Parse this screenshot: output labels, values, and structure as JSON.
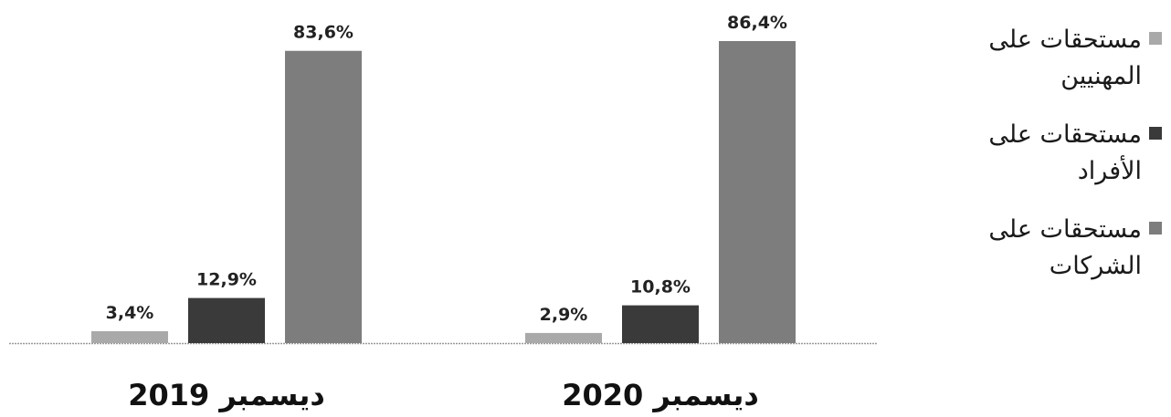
{
  "chart_data": {
    "type": "bar",
    "categories": [
      "ديسمبر 2019",
      "ديسمبر 2020"
    ],
    "series": [
      {
        "name": "مستحقات على المهنيين",
        "values": [
          3.4,
          2.9
        ],
        "labels": [
          "3,4%",
          "2,9%"
        ],
        "color": "#a9a9a9"
      },
      {
        "name": "مستحقات على الأفراد",
        "values": [
          12.9,
          10.8
        ],
        "labels": [
          "12,9%",
          "10,8%"
        ],
        "color": "#3a3a3a"
      },
      {
        "name": "مستحقات على الشركات",
        "values": [
          83.6,
          86.4
        ],
        "labels": [
          "83,6%",
          "86,4%"
        ],
        "color": "#7d7d7d"
      }
    ],
    "ylim": [
      0,
      100
    ],
    "grid": false,
    "legend": "right"
  },
  "legend_order": [
    0,
    1,
    2
  ]
}
